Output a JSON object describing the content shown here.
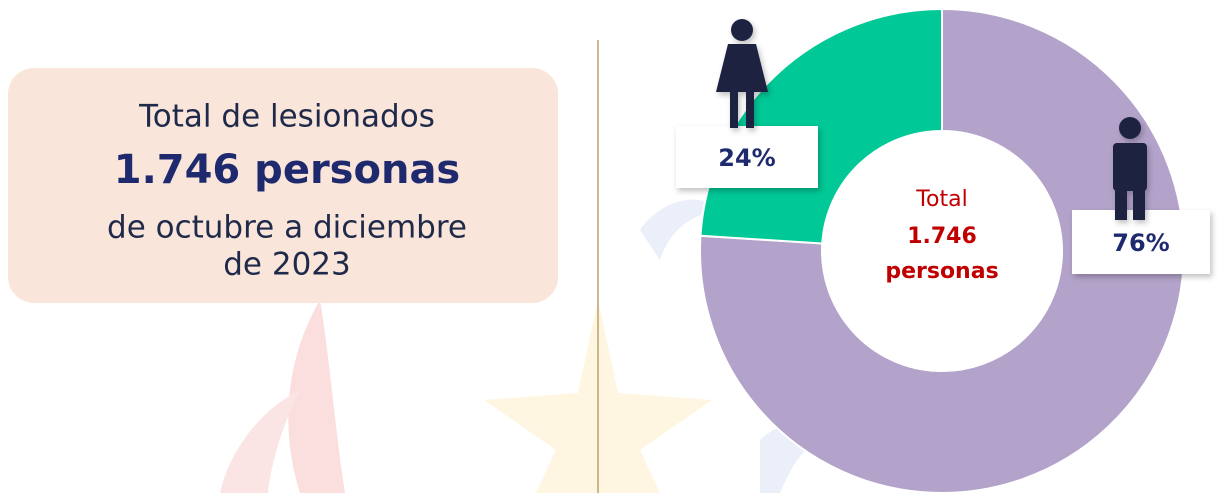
{
  "summary": {
    "line1": "Total de lesionados",
    "line2": "1.746 personas",
    "line3": "de octubre a diciembre",
    "line4": "de 2023"
  },
  "chart_data": {
    "type": "donut",
    "values": [
      76,
      24
    ],
    "value_labels": [
      "76%",
      "24%"
    ],
    "colors": [
      "#b3a3ca",
      "#00c896"
    ],
    "center_text": [
      "Total",
      "1.746",
      "personas"
    ]
  }
}
